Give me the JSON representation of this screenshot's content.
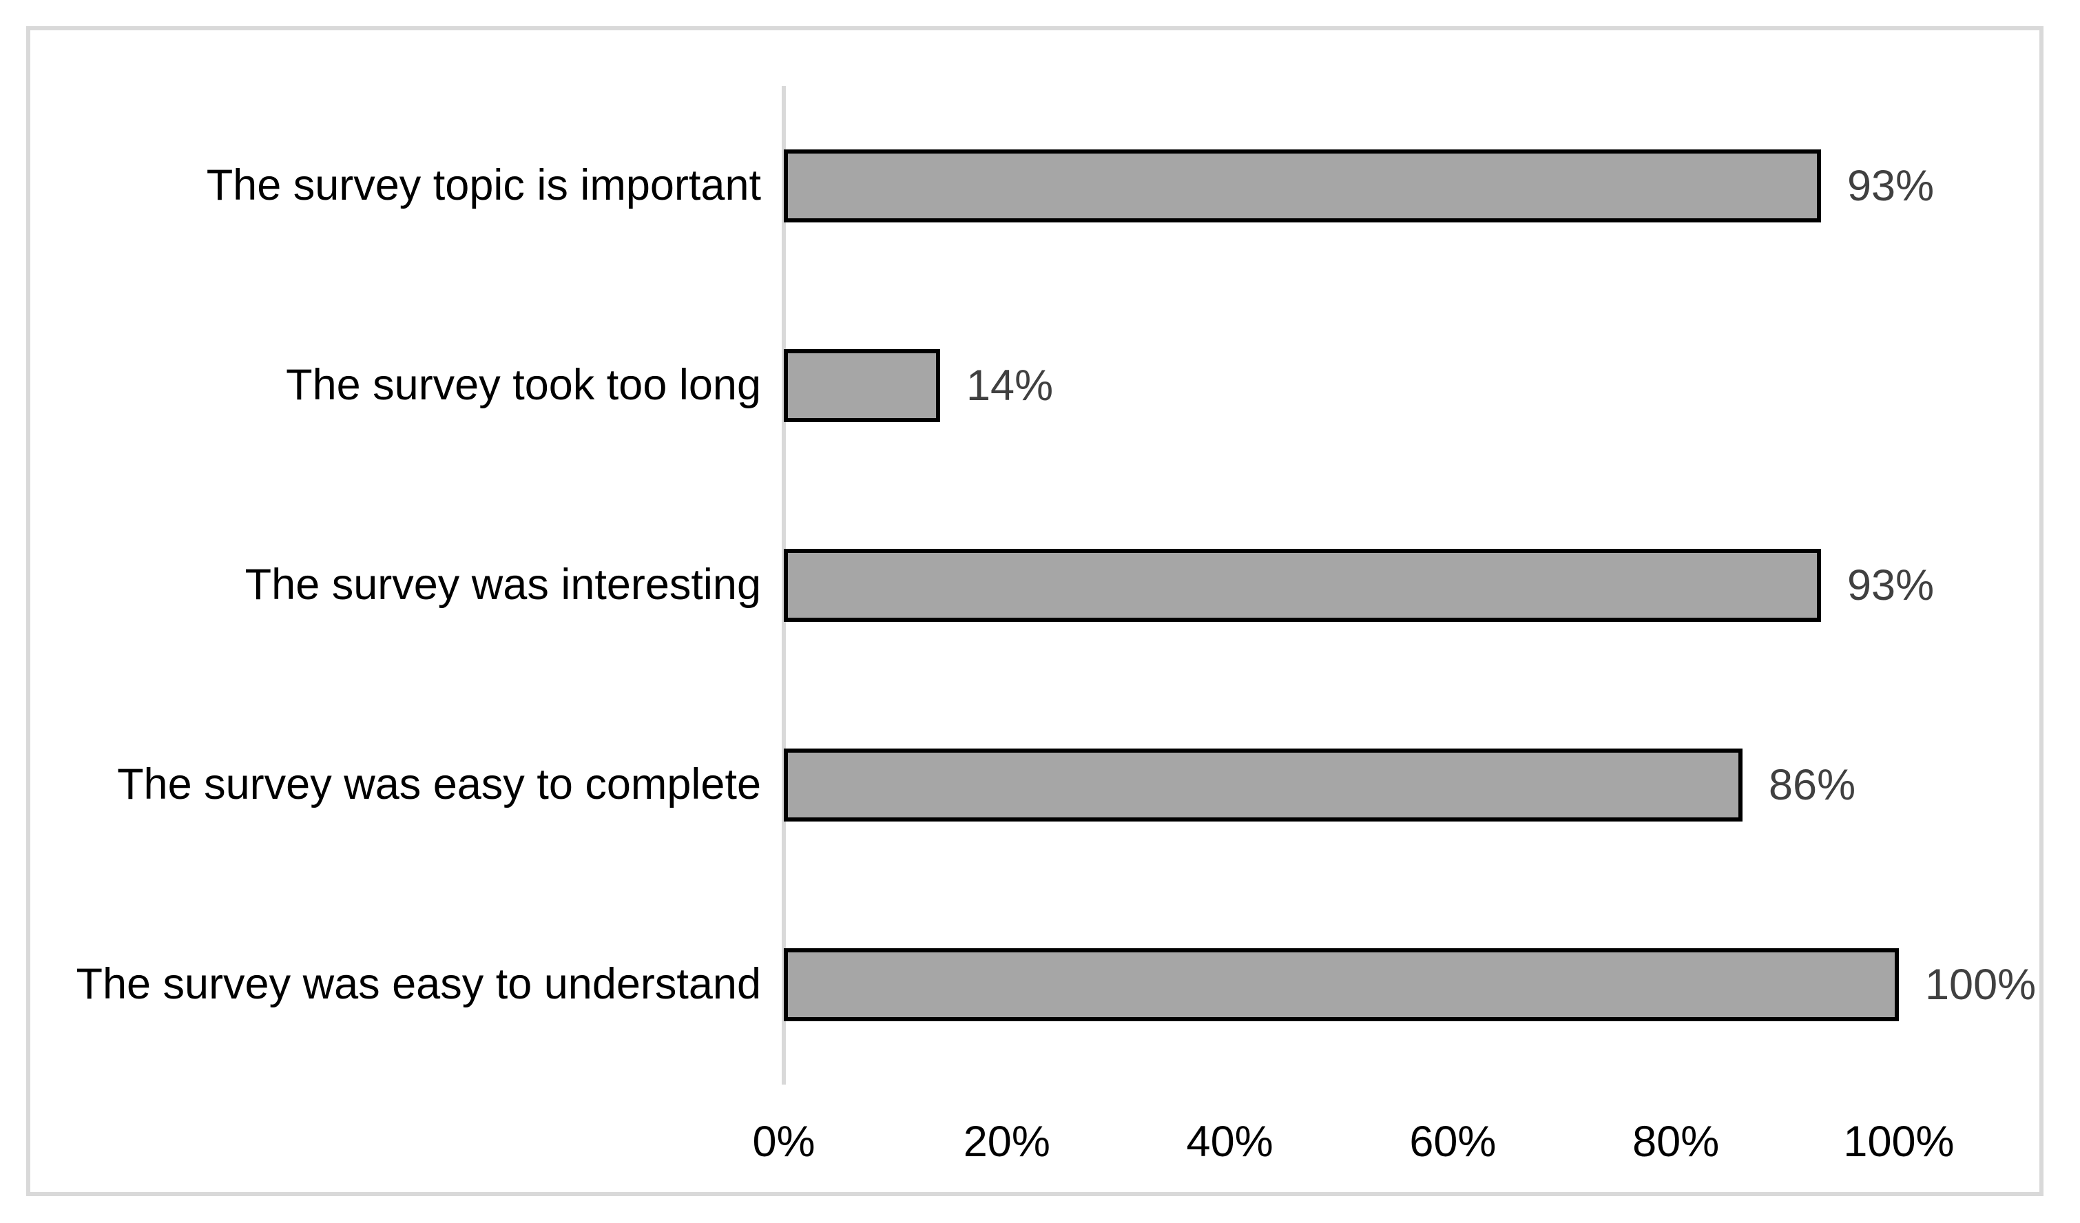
{
  "chart_data": {
    "type": "bar",
    "orientation": "horizontal",
    "title": "",
    "xlabel": "",
    "ylabel": "",
    "categories": [
      "The survey topic is important",
      "The survey took too long",
      "The survey was interesting",
      "The survey was easy to complete",
      "The survey was easy to understand"
    ],
    "values": [
      93,
      14,
      93,
      86,
      100
    ],
    "value_labels": [
      "93%",
      "14%",
      "93%",
      "86%",
      "100%"
    ],
    "x_ticks": [
      "0%",
      "20%",
      "40%",
      "60%",
      "80%",
      "100%"
    ],
    "x_tick_values": [
      0,
      20,
      40,
      60,
      80,
      100
    ],
    "xlim": [
      0,
      100
    ],
    "grid": false,
    "legend": "none",
    "colors": {
      "bar_fill": "#a6a6a6",
      "bar_border": "#000000",
      "axis_line": "#d9d9d9",
      "frame_border": "#d9d9d9",
      "category_label": "#000000",
      "value_label": "#404040",
      "tick_label": "#000000",
      "background": "#ffffff"
    }
  }
}
